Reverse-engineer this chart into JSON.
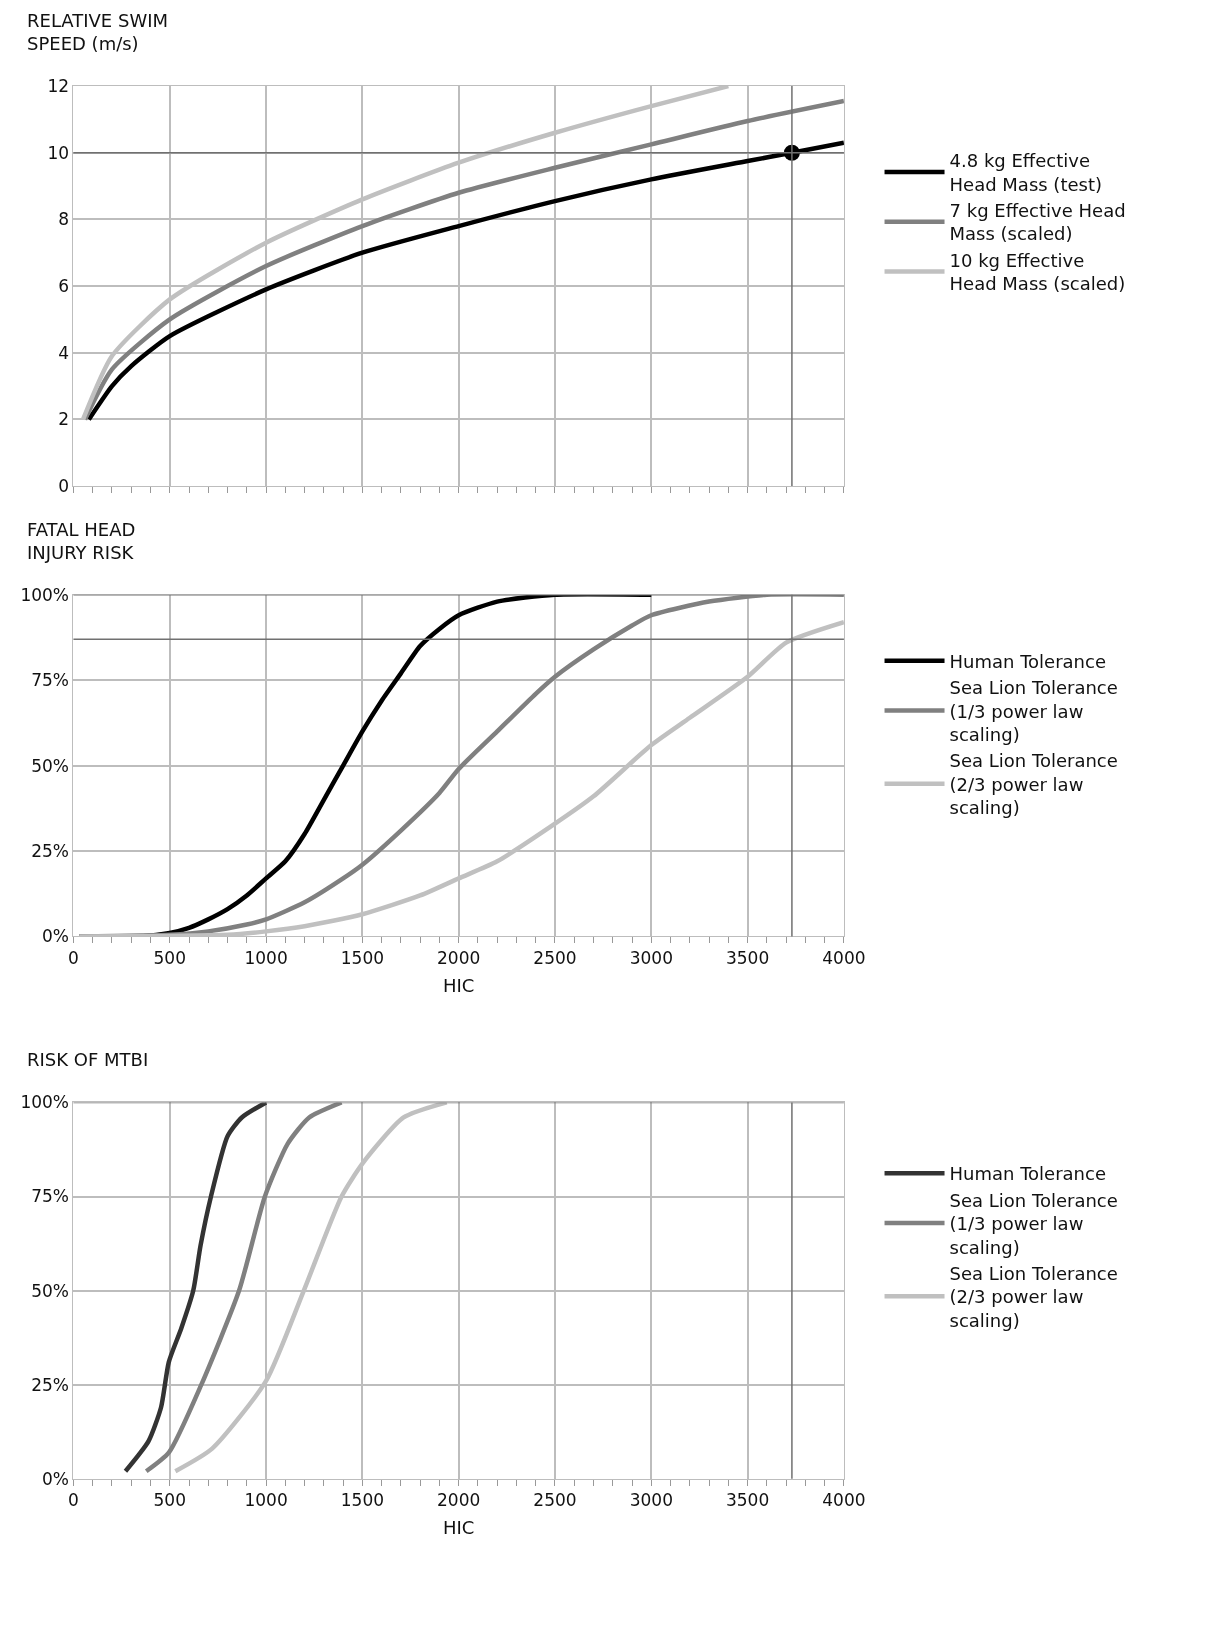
{
  "chart_data": [
    {
      "type": "line",
      "title": "RELATIVE SWIM SPEED (m/s)",
      "xlim": [
        0,
        4000
      ],
      "xticks": [
        0,
        500,
        1000,
        1500,
        2000,
        2500,
        3000,
        3500,
        4000
      ],
      "ylim": [
        0,
        12
      ],
      "yticks": [
        0,
        2,
        4,
        6,
        8,
        10,
        12
      ],
      "tick_labels": "y",
      "grid": true,
      "legend": "right",
      "series": [
        {
          "name": "4.8 kg Effective Head Mass (test)",
          "color": "#000000",
          "x": [
            80,
            200,
            300,
            500,
            1000,
            1500,
            2000,
            2500,
            3000,
            3500,
            3730,
            4000
          ],
          "values": [
            2,
            3,
            3.6,
            4.5,
            5.9,
            7.0,
            7.8,
            8.55,
            9.2,
            9.75,
            10,
            10.3
          ]
        },
        {
          "name": "7 kg Effective Head Mass (scaled)",
          "color": "#808080",
          "x": [
            60,
            200,
            500,
            1000,
            1500,
            2000,
            2500,
            3000,
            3500,
            4000
          ],
          "values": [
            2,
            3.5,
            5.0,
            6.6,
            7.8,
            8.8,
            9.55,
            10.25,
            10.95,
            11.55
          ]
        },
        {
          "name": "10 kg Effective Head Mass (scaled)",
          "color": "#c0c0c0",
          "x": [
            50,
            200,
            500,
            1000,
            1500,
            2000,
            2500,
            3000,
            3400
          ],
          "values": [
            2,
            3.9,
            5.6,
            7.3,
            8.6,
            9.7,
            10.6,
            11.4,
            12.0
          ]
        },
        {
          "type": "scatter",
          "marker": "circle",
          "color": "#000000",
          "x": [
            3730
          ],
          "values": [
            10
          ]
        }
      ],
      "ref_lines": [
        {
          "axis": "y",
          "value": 10,
          "color": "#707070"
        },
        {
          "axis": "x",
          "value": 3730,
          "color": "#707070"
        }
      ]
    },
    {
      "type": "line",
      "title": "FATAL HEAD INJURY RISK",
      "xlabel": "HIC",
      "xlim": [
        0,
        4000
      ],
      "xticks": [
        0,
        500,
        1000,
        1500,
        2000,
        2500,
        3000,
        3500,
        4000
      ],
      "ylim": [
        0,
        100
      ],
      "yticks": [
        {
          "value": 0,
          "label": "0%"
        },
        {
          "value": 25,
          "label": "25%"
        },
        {
          "value": 50,
          "label": "50%"
        },
        {
          "value": 75,
          "label": "75%"
        },
        {
          "value": 100,
          "label": "100%"
        }
      ],
      "grid": true,
      "legend": "right",
      "series": [
        {
          "name": "Human Tolerance",
          "color": "#000000",
          "x": [
            30,
            350,
            500,
            600,
            700,
            800,
            900,
            1000,
            1100,
            1200,
            1300,
            1400,
            1500,
            1600,
            1700,
            1800,
            1900,
            2000,
            2200,
            2500,
            3000
          ],
          "values": [
            0,
            0,
            1,
            2.5,
            5,
            8,
            12,
            17,
            22,
            30,
            40,
            50,
            60,
            69,
            77,
            85,
            90,
            94,
            98,
            100,
            100
          ]
        },
        {
          "name": "Sea Lion Tolerance (1/3 power law scaling)",
          "color": "#808080",
          "x": [
            30,
            500,
            700,
            900,
            1000,
            1200,
            1400,
            1500,
            1700,
            1900,
            2000,
            2200,
            2400,
            2500,
            2700,
            2900,
            3000,
            3300,
            3600,
            4000
          ],
          "values": [
            0,
            0.5,
            1.5,
            3.5,
            5,
            10,
            17,
            21,
            31,
            42,
            49,
            60,
            71,
            76,
            84,
            91,
            94,
            98,
            100,
            100
          ]
        },
        {
          "name": "Sea Lion Tolerance (2/3 power law scaling)",
          "color": "#c0c0c0",
          "x": [
            30,
            800,
            1000,
            1200,
            1500,
            1800,
            2000,
            2200,
            2500,
            2700,
            3000,
            3200,
            3500,
            3700,
            4000
          ],
          "values": [
            0,
            0.5,
            1.5,
            3,
            6.5,
            12,
            17,
            22,
            33,
            41,
            56,
            64,
            76,
            86,
            92
          ]
        }
      ],
      "ref_lines": [
        {
          "axis": "y",
          "value": 100,
          "color": "#707070"
        },
        {
          "axis": "y",
          "value": 87,
          "color": "#707070"
        },
        {
          "axis": "x",
          "value": 3730,
          "color": "#707070"
        }
      ]
    },
    {
      "type": "line",
      "title": "RISK OF MTBI",
      "xlabel": "HIC",
      "xlim": [
        0,
        4000
      ],
      "xticks": [
        0,
        500,
        1000,
        1500,
        2000,
        2500,
        3000,
        3500,
        4000
      ],
      "ylim": [
        0,
        100
      ],
      "yticks": [
        {
          "value": 0,
          "label": "0%"
        },
        {
          "value": 25,
          "label": "25%"
        },
        {
          "value": 50,
          "label": "50%"
        },
        {
          "value": 75,
          "label": "75%"
        },
        {
          "value": 100,
          "label": "100%"
        }
      ],
      "grid": true,
      "legend": "right",
      "series": [
        {
          "name": "Human Tolerance",
          "color": "#333333",
          "x": [
            270,
            390,
            455,
            495,
            560,
            622,
            660,
            714,
            800,
            874,
            1000
          ],
          "values": [
            2,
            10,
            19,
            31,
            40,
            50,
            62,
            75,
            91,
            96,
            100
          ]
        },
        {
          "name": "Sea Lion Tolerance (1/3 power law scaling)",
          "color": "#808080",
          "x": [
            378,
            496,
            664,
            860,
            994,
            1112,
            1224,
            1392
          ],
          "values": [
            2,
            7,
            25,
            50,
            75,
            89,
            96,
            100
          ]
        },
        {
          "name": "Sea Lion Tolerance (2/3 power law scaling)",
          "color": "#c0c0c0",
          "x": [
            529,
            720,
            1000,
            1196,
            1392,
            1504,
            1714,
            1938
          ],
          "values": [
            2,
            8,
            26,
            50,
            75,
            84,
            96,
            100
          ]
        }
      ],
      "ref_lines": [
        {
          "axis": "y",
          "value": 100,
          "color": "#707070"
        },
        {
          "axis": "x",
          "value": 3730,
          "color": "#707070"
        }
      ]
    }
  ]
}
